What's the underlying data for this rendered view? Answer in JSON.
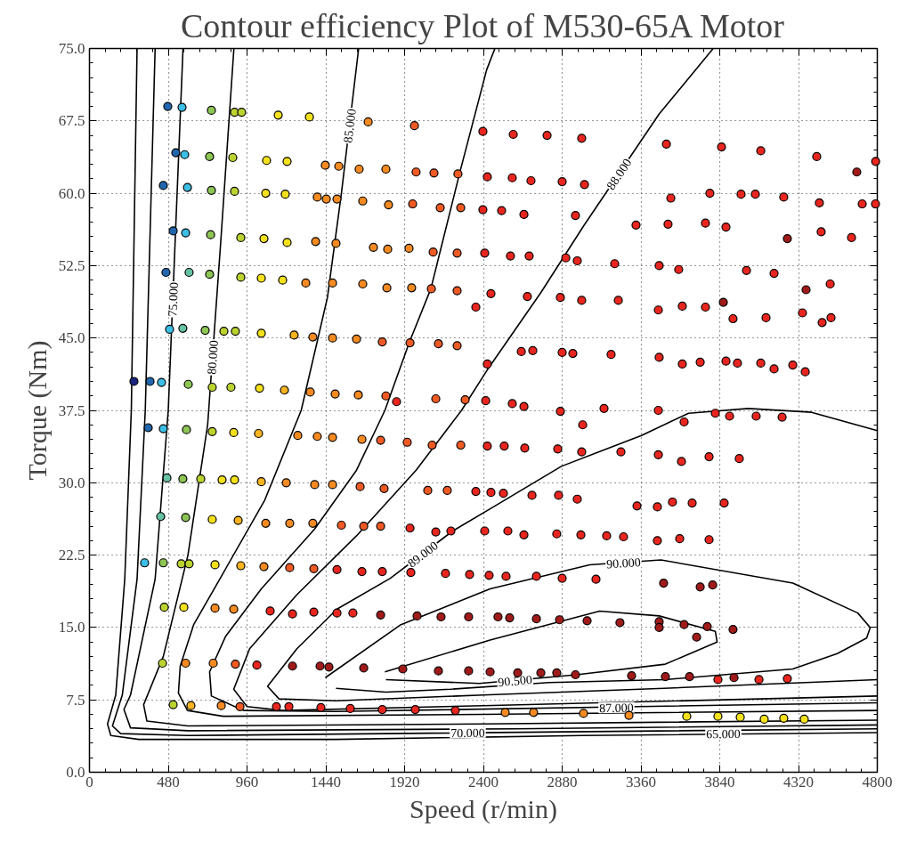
{
  "chart_data": {
    "type": "scatter",
    "title": "Contour efficiency Plot of M530-65A Motor",
    "xlabel": "Speed (r/min)",
    "ylabel": "Torque (Nm)",
    "xlim": [
      0,
      4800
    ],
    "ylim": [
      0,
      75
    ],
    "xticks": [
      0,
      480,
      960,
      1440,
      1920,
      2400,
      2880,
      3360,
      3840,
      4320,
      4800
    ],
    "yticks": [
      {
        "value": 0,
        "label": "0.0"
      },
      7.5,
      {
        "value": 15,
        "label": "15.0"
      },
      22.5,
      {
        "value": 30,
        "label": "30.0"
      },
      37.5,
      {
        "value": 45,
        "label": "45.0"
      },
      52.5,
      {
        "value": 60,
        "label": "60.0"
      },
      67.5,
      {
        "value": 75,
        "label": "75.0"
      }
    ],
    "grid": true,
    "marker": "circle",
    "series": [
      {
        "type": "line",
        "marker": "none",
        "color": "#000000",
        "x": [
          290,
          255,
          215,
          160,
          110,
          130,
          300,
          1500,
          3000,
          4800
        ],
        "values": [
          75,
          37.5,
          20,
          8,
          5,
          3.8,
          3.4,
          3.4,
          3.8,
          4.1
        ]
      },
      {
        "type": "line",
        "marker": "none",
        "color": "#000000",
        "x": [
          400,
          340,
          290,
          200,
          140,
          190,
          600,
          4800
        ],
        "values": [
          75,
          37.5,
          20,
          8,
          4.8,
          4.0,
          3.8,
          4.5
        ]
      },
      {
        "type": "line",
        "marker": "none",
        "color": "#000000",
        "x": [
          570,
          480,
          400,
          250,
          210,
          250,
          600,
          2600,
          4800
        ],
        "values": [
          75,
          37.5,
          20,
          8,
          6.5,
          4.6,
          4.3,
          4.5,
          4.9
        ]
      },
      {
        "type": "line",
        "marker": "none",
        "color": "#000000",
        "x": [
          880,
          800,
          720,
          600,
          450,
          330,
          350,
          600,
          2400,
          4800
        ],
        "values": [
          75,
          55,
          36,
          22.5,
          12,
          7,
          5.3,
          4.8,
          5.0,
          5.4
        ]
      },
      {
        "type": "line",
        "marker": "none",
        "color": "#000000",
        "x": [
          1640,
          1535,
          1450,
          1290,
          1068,
          800,
          635,
          553,
          542,
          597,
          814,
          2400,
          4800
        ],
        "values": [
          75,
          60,
          49.2,
          37.5,
          28.2,
          20.2,
          15.3,
          11,
          8.2,
          6.4,
          5.8,
          6.0,
          6.4
        ]
      },
      {
        "type": "line",
        "marker": "none",
        "color": "#000000",
        "x": [
          2470,
          2420,
          2260,
          2080,
          1950,
          1800,
          1627,
          1372,
          1047,
          830,
          732,
          743,
          938,
          1500,
          4800
        ],
        "values": [
          75,
          72.8,
          62.4,
          50.1,
          44.6,
          37.5,
          31.3,
          25.2,
          19,
          14.1,
          10.4,
          7.9,
          6.4,
          6.3,
          7.2
        ]
      },
      {
        "type": "line",
        "marker": "none",
        "color": "#000000",
        "x": [
          3800,
          3470,
          3010,
          2750,
          2420,
          2267,
          1990,
          1627,
          1264,
          976,
          879,
          960,
          1177,
          2400,
          4800
        ],
        "values": [
          75,
          68.2,
          56.6,
          49.7,
          41.6,
          37.5,
          31.3,
          24.5,
          18.4,
          12.8,
          8.6,
          6.8,
          6.4,
          6.9,
          7.9
        ]
      },
      {
        "type": "line",
        "marker": "none",
        "color": "#000000",
        "x": [
          4800,
          4400,
          4013,
          3650,
          3363,
          2875,
          2441,
          2213,
          1833,
          1508,
          1264,
          1085,
          1155,
          1500,
          2400,
          3500,
          4800
        ],
        "values": [
          35.4,
          37.3,
          37.7,
          37.2,
          34.9,
          31.7,
          27.3,
          25.0,
          20.1,
          16.9,
          12.8,
          8.9,
          7.6,
          7.4,
          8.0,
          8.7,
          9.6
        ]
      },
      {
        "type": "line",
        "marker": "none",
        "color": "#000000",
        "x": [
          1502,
          1806,
          2200,
          2800,
          3509,
          4285,
          4556,
          4735,
          4757,
          4681,
          4285,
          3482,
          3048,
          2441,
          1898,
          1437
        ],
        "values": [
          8.7,
          8.3,
          8.6,
          9.3,
          9.6,
          10.7,
          12.3,
          13.9,
          15.0,
          16.5,
          19.6,
          22.0,
          21.5,
          19.0,
          15.3,
          9.8
        ]
      },
      {
        "type": "line",
        "marker": "none",
        "color": "#000000",
        "x": [
          1806,
          2376,
          2967,
          3509,
          3824,
          3813,
          3471,
          3108,
          2441,
          1800
        ],
        "values": [
          9.6,
          9.2,
          10.1,
          11.2,
          13.5,
          14.6,
          16.2,
          16.7,
          13.7,
          10.4
        ]
      },
      {
        "color": "#1a237e",
        "x": [
          271
        ],
        "values": [
          40.5
        ]
      },
      {
        "color": "#2166ac",
        "x": [
          477,
          526,
          450,
          510,
          466,
          369,
          358
        ],
        "values": [
          69.0,
          64.2,
          60.8,
          56.1,
          51.8,
          40.5,
          35.7
        ]
      },
      {
        "color": "#3bbfe6",
        "x": [
          564,
          580,
          597,
          586,
          488,
          439,
          450,
          336
        ],
        "values": [
          68.9,
          64.0,
          60.6,
          55.9,
          45.9,
          40.4,
          35.6,
          21.7
        ]
      },
      {
        "color": "#66c2a5",
        "x": [
          607,
          569,
          472,
          434
        ],
        "values": [
          51.8,
          46.0,
          30.5,
          26.5
        ]
      },
      {
        "color": "#8dc653",
        "x": [
          743,
          732,
          743,
          738,
          732,
          705,
          602,
          591,
          569,
          586,
          450
        ],
        "values": [
          68.6,
          63.8,
          60.3,
          55.7,
          51.6,
          45.8,
          40.2,
          35.5,
          30.4,
          26.4,
          21.7
        ]
      },
      {
        "color": "#bcd32f",
        "x": [
          884,
          927,
          873,
          884,
          922,
          922,
          819,
          889,
          748,
          862,
          748,
          678,
          559,
          607,
          456,
          445,
          510
        ],
        "values": [
          68.4,
          68.4,
          63.7,
          60.2,
          55.4,
          51.3,
          45.7,
          45.7,
          39.9,
          39.9,
          35.3,
          30.4,
          21.6,
          21.6,
          17.1,
          11.3,
          7.0
        ]
      },
      {
        "color": "#f5e11b",
        "x": [
          1150,
          1340,
          1079,
          1204,
          1074,
          1193,
          1063,
          1204,
          1047,
          1177,
          1047,
          1036,
          879,
          808,
          884,
          748,
          765,
          575,
          3639,
          3829,
          3965,
          4111,
          4230,
          4355
        ],
        "values": [
          68.1,
          67.9,
          63.4,
          63.3,
          60.0,
          59.9,
          55.3,
          54.9,
          51.2,
          51.0,
          45.5,
          39.8,
          35.2,
          30.3,
          30.3,
          26.2,
          21.5,
          17.1,
          5.8,
          5.8,
          5.7,
          5.5,
          5.6,
          5.5
        ]
      },
      {
        "color": "#f9b31e",
        "x": [
          1247,
          1188,
          1030,
          1047,
          906,
          922,
          618
        ],
        "values": [
          45.3,
          39.6,
          35.1,
          30.1,
          26.1,
          21.4,
          6.9
        ]
      },
      {
        "color": "#f58a21",
        "x": [
          1698,
          1437,
          1519,
          1643,
          1806,
          1388,
          1443,
          1508,
          1665,
          1822,
          1378,
          1502,
          1730,
          1817,
          1947,
          1318,
          1481,
          1665,
          1812,
          1963,
          1361,
          1481,
          1627,
          1345,
          1497,
          1638,
          1269,
          1388,
          1481,
          1660,
          1199,
          1372,
          1481,
          1074,
          1220,
          1361,
          1063,
          765,
          879,
          586,
          754,
          803,
          2533,
          2706,
          3010,
          3287
        ],
        "values": [
          67.4,
          62.9,
          62.8,
          62.5,
          62.5,
          59.6,
          59.4,
          59.4,
          59.2,
          58.8,
          55.0,
          54.8,
          54.4,
          54.2,
          54.3,
          50.7,
          50.7,
          50.6,
          50.2,
          50.2,
          45.1,
          45.0,
          44.9,
          39.4,
          39.2,
          39.1,
          34.9,
          34.8,
          34.7,
          34.5,
          30.0,
          29.8,
          29.8,
          25.8,
          25.8,
          25.8,
          21.3,
          17.0,
          16.9,
          11.3,
          11.3,
          6.9,
          6.2,
          6.2,
          6.1,
          5.9
        ]
      },
      {
        "color": "#ef5a24",
        "x": [
          1980,
          1990,
          2099,
          2245,
          1969,
          2137,
          2262,
          2094,
          2240,
          2083,
          2240,
          1784,
          1953,
          2126,
          2240,
          1806,
          2110,
          2289,
          1774,
          1936,
          2088,
          2262,
          1649,
          1795,
          2061,
          2180,
          1535,
          1671,
          1774,
          1220,
          1367,
          889,
          917
        ],
        "values": [
          67.0,
          62.2,
          62.1,
          62.0,
          58.9,
          58.5,
          58.5,
          53.9,
          53.8,
          50.1,
          49.9,
          44.6,
          44.5,
          44.4,
          44.2,
          39.0,
          38.7,
          38.6,
          34.4,
          34.2,
          33.9,
          33.9,
          29.6,
          29.4,
          29.2,
          29.2,
          25.6,
          25.5,
          25.5,
          21.2,
          21.1,
          11.2,
          6.8
        ]
      },
      {
        "color": "#e8251e",
        "x": [
          2397,
          2582,
          2788,
          2999,
          3515,
          3851,
          4090,
          4431,
          4790,
          2424,
          2576,
          2690,
          2880,
          3016,
          2397,
          2511,
          2647,
          2961,
          3330,
          3525,
          3753,
          3878,
          3542,
          3780,
          3970,
          4057,
          4230,
          4447,
          4708,
          4789,
          4458,
          4643,
          2408,
          2565,
          2679,
          2902,
          2972,
          3200,
          3471,
          3590,
          4003,
          4171,
          4513,
          2354,
          2446,
          2668,
          2869,
          2999,
          3222,
          3466,
          3612,
          3753,
          3921,
          4122,
          4344,
          4464,
          4518,
          2424,
          2631,
          2701,
          2880,
          2945,
          3178,
          3471,
          3612,
          3721,
          3878,
          3948,
          4090,
          4171,
          4285,
          4361,
          1871,
          2414,
          2576,
          2647,
          2869,
          3005,
          3135,
          3466,
          3623,
          3813,
          3900,
          4062,
          4220,
          2424,
          2527,
          2652,
          2853,
          2999,
          3238,
          3466,
          3607,
          3775,
          3959,
          2354,
          2446,
          2522,
          2696,
          2858,
          2972,
          3336,
          3460,
          3552,
          3672,
          3867,
          1953,
          2110,
          2202,
          2408,
          2549,
          2647,
          2847,
          2994,
          3151,
          3254,
          3460,
          3596,
          3775,
          1508,
          1660,
          1784,
          1958,
          2169,
          2316,
          2435,
          2538,
          2723,
          2880,
          3086,
          1101,
          1237,
          1367,
          1508,
          1605,
          1020,
          3829,
          4079,
          4252,
          1139,
          1215,
          1410,
          1589,
          1784,
          1985,
          2229
        ],
        "values": [
          66.4,
          66.1,
          66.0,
          65.7,
          65.1,
          64.8,
          64.4,
          63.8,
          63.3,
          61.7,
          61.6,
          61.3,
          61.2,
          60.9,
          58.3,
          58.2,
          57.8,
          57.7,
          56.7,
          56.8,
          56.9,
          56.5,
          59.5,
          60.0,
          59.9,
          59.9,
          59.6,
          59.0,
          58.9,
          58.9,
          56.0,
          55.4,
          53.8,
          53.5,
          53.5,
          53.3,
          53.0,
          52.7,
          52.5,
          52.1,
          52.0,
          51.7,
          50.6,
          48.2,
          49.6,
          49.3,
          49.2,
          48.9,
          48.9,
          47.9,
          48.3,
          48.2,
          47.0,
          47.1,
          47.6,
          46.6,
          47.1,
          42.3,
          43.6,
          43.7,
          43.5,
          43.4,
          43.3,
          43.0,
          42.3,
          42.5,
          42.6,
          42.4,
          42.4,
          41.8,
          42.2,
          41.5,
          38.4,
          38.5,
          38.2,
          37.9,
          37.4,
          36.0,
          37.7,
          37.5,
          36.3,
          37.2,
          36.9,
          36.9,
          36.8,
          33.8,
          33.8,
          33.6,
          33.5,
          33.2,
          33.2,
          32.9,
          32.2,
          32.7,
          32.5,
          29.1,
          29.0,
          28.9,
          28.7,
          28.7,
          28.3,
          27.6,
          27.5,
          28.0,
          27.9,
          27.9,
          25.3,
          24.9,
          25.0,
          25.0,
          25.0,
          24.6,
          24.7,
          24.6,
          24.5,
          24.4,
          24.0,
          24.2,
          24.1,
          21.0,
          20.8,
          20.8,
          20.7,
          20.6,
          20.5,
          20.4,
          20.3,
          20.3,
          20.1,
          20.0,
          16.7,
          16.4,
          16.6,
          16.5,
          16.5,
          11.1,
          9.6,
          9.6,
          9.7,
          6.8,
          6.8,
          6.7,
          6.6,
          6.5,
          6.5,
          6.4
        ]
      },
      {
        "color": "#a11a1a",
        "x": [
          4675,
          4252,
          4366,
          3862,
          3498,
          3721,
          3797,
          1774,
          1996,
          2142,
          2310,
          2489,
          2560,
          2723,
          2864,
          3032,
          3232,
          3471,
          3471,
          3623,
          3764,
          3699,
          3921,
          1237,
          1405,
          1459,
          1671,
          1909,
          2126,
          2310,
          2441,
          2609,
          2750,
          2847,
          2961,
          3303,
          3509,
          3656,
          3927
        ],
        "values": [
          62.2,
          55.3,
          50.0,
          48.7,
          19.6,
          19.2,
          19.4,
          16.3,
          16.2,
          16.1,
          16.1,
          16.1,
          16.0,
          15.9,
          15.8,
          15.7,
          15.5,
          15.6,
          15.0,
          15.3,
          15.1,
          14.0,
          14.8,
          11.0,
          11.0,
          10.9,
          10.8,
          10.7,
          10.5,
          10.5,
          10.4,
          10.3,
          10.3,
          10.3,
          10.1,
          10.0,
          9.9,
          9.9,
          9.8
        ]
      }
    ],
    "annotations": [
      {
        "text": "65.000",
        "x": 3862,
        "y": 4.0
      },
      {
        "text": "70.000",
        "x": 2305,
        "y": 4.1
      },
      {
        "text": "75.000",
        "x": 508,
        "y": 49.0
      },
      {
        "text": "80.000",
        "x": 749,
        "y": 43.0
      },
      {
        "text": "85.000",
        "x": 1584,
        "y": 67.0
      },
      {
        "text": "87.000",
        "x": 3211,
        "y": 6.7
      },
      {
        "text": "88.000",
        "x": 3225,
        "y": 62.0
      },
      {
        "text": "89.000",
        "x": 2030,
        "y": 22.6
      },
      {
        "text": "90.000",
        "x": 3254,
        "y": 21.7
      },
      {
        "text": "90.500",
        "x": 2593,
        "y": 9.5
      }
    ]
  }
}
